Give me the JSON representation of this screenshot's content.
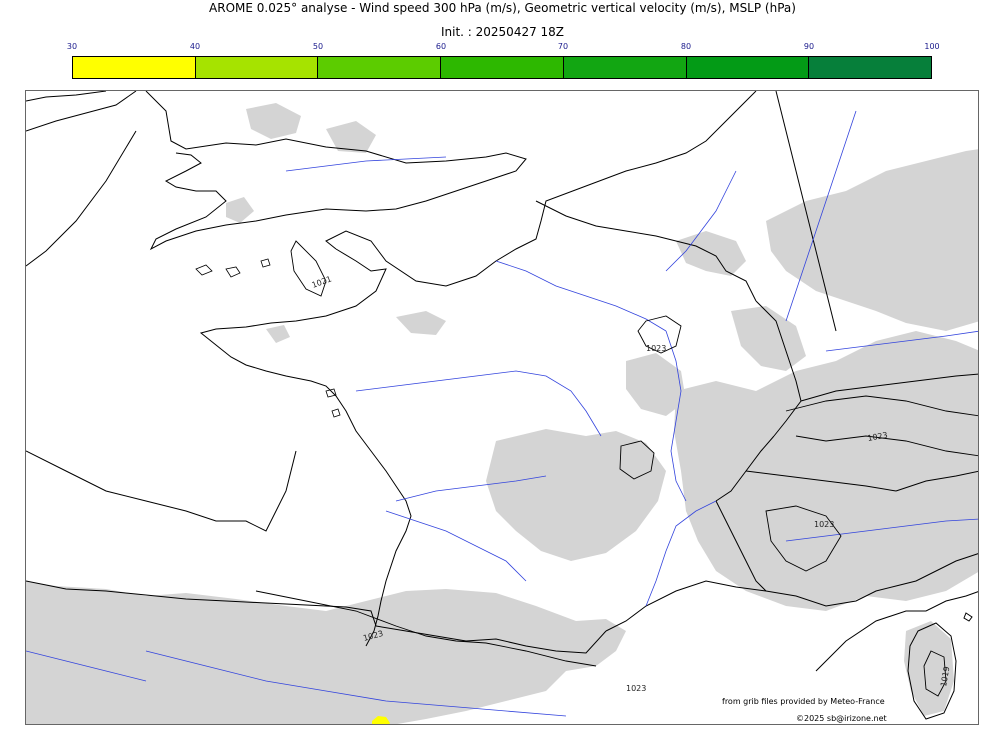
{
  "header": {
    "title": "AROME 0.025° analyse - Wind speed 300 hPa (m/s), Geometric vertical velocity (m/s), MSLP (hPa)",
    "subtitle": "Init. : 20250427 18Z"
  },
  "colorbar": {
    "tick_labels": [
      "30",
      "40",
      "50",
      "60",
      "70",
      "80",
      "90",
      "100"
    ],
    "colors": [
      "#ffff00",
      "#a6e300",
      "#5ccc00",
      "#2db800",
      "#12a612",
      "#039b16",
      "#067f3a",
      "#076e4a"
    ]
  },
  "map": {
    "isobar_labels": [
      "1021",
      "1023",
      "1023",
      "1023",
      "1023",
      "1023",
      "1019"
    ],
    "cloud_color": "#d4d4d4",
    "coast_color": "#000000",
    "river_color": "#3344dd",
    "wind_color": "#ffff00"
  },
  "footer": {
    "source": "from grib files provided by Meteo-France",
    "copyright": "©2025 sb@irizone.net"
  }
}
